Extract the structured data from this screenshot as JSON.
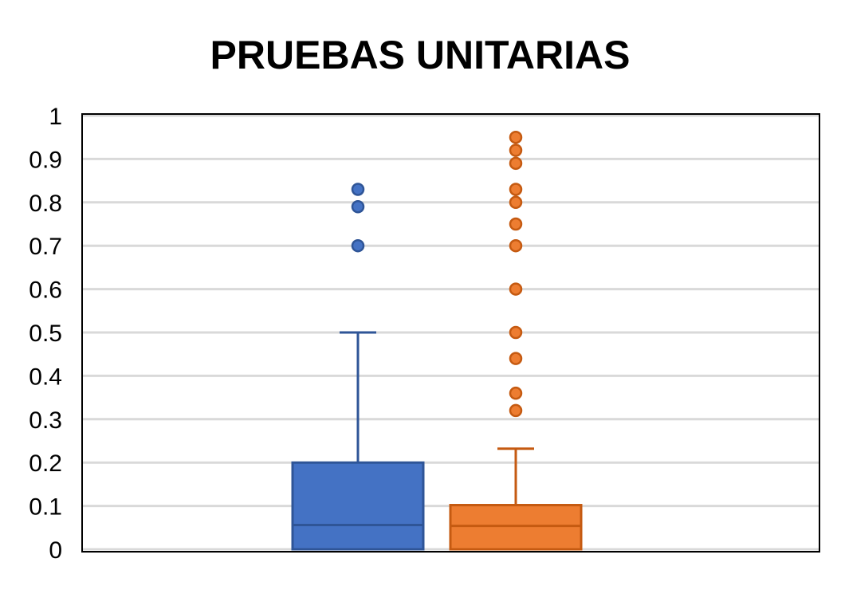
{
  "chart_data": {
    "type": "box",
    "title": "PRUEBAS UNITARIAS",
    "xlabel": "",
    "ylabel": "",
    "ylim": [
      0,
      1
    ],
    "yticks": [
      "0",
      "0.1",
      "0.2",
      "0.3",
      "0.4",
      "0.5",
      "0.6",
      "0.7",
      "0.8",
      "0.9",
      "1"
    ],
    "grid": true,
    "legend": "none",
    "series": [
      {
        "color": "#4472c4",
        "edge_color": "#2f5597",
        "whisker_low": 0,
        "q1": 0,
        "median": 0.056,
        "q3": 0.2,
        "whisker_high": 0.5,
        "outliers": [
          0.7,
          0.79,
          0.83
        ]
      },
      {
        "color": "#ed7d31",
        "edge_color": "#c55a11",
        "whisker_low": 0,
        "q1": 0,
        "median": 0.054,
        "q3": 0.102,
        "whisker_high": 0.232,
        "outliers": [
          0.32,
          0.36,
          0.44,
          0.5,
          0.6,
          0.7,
          0.75,
          0.8,
          0.83,
          0.89,
          0.92,
          0.95
        ]
      }
    ]
  }
}
